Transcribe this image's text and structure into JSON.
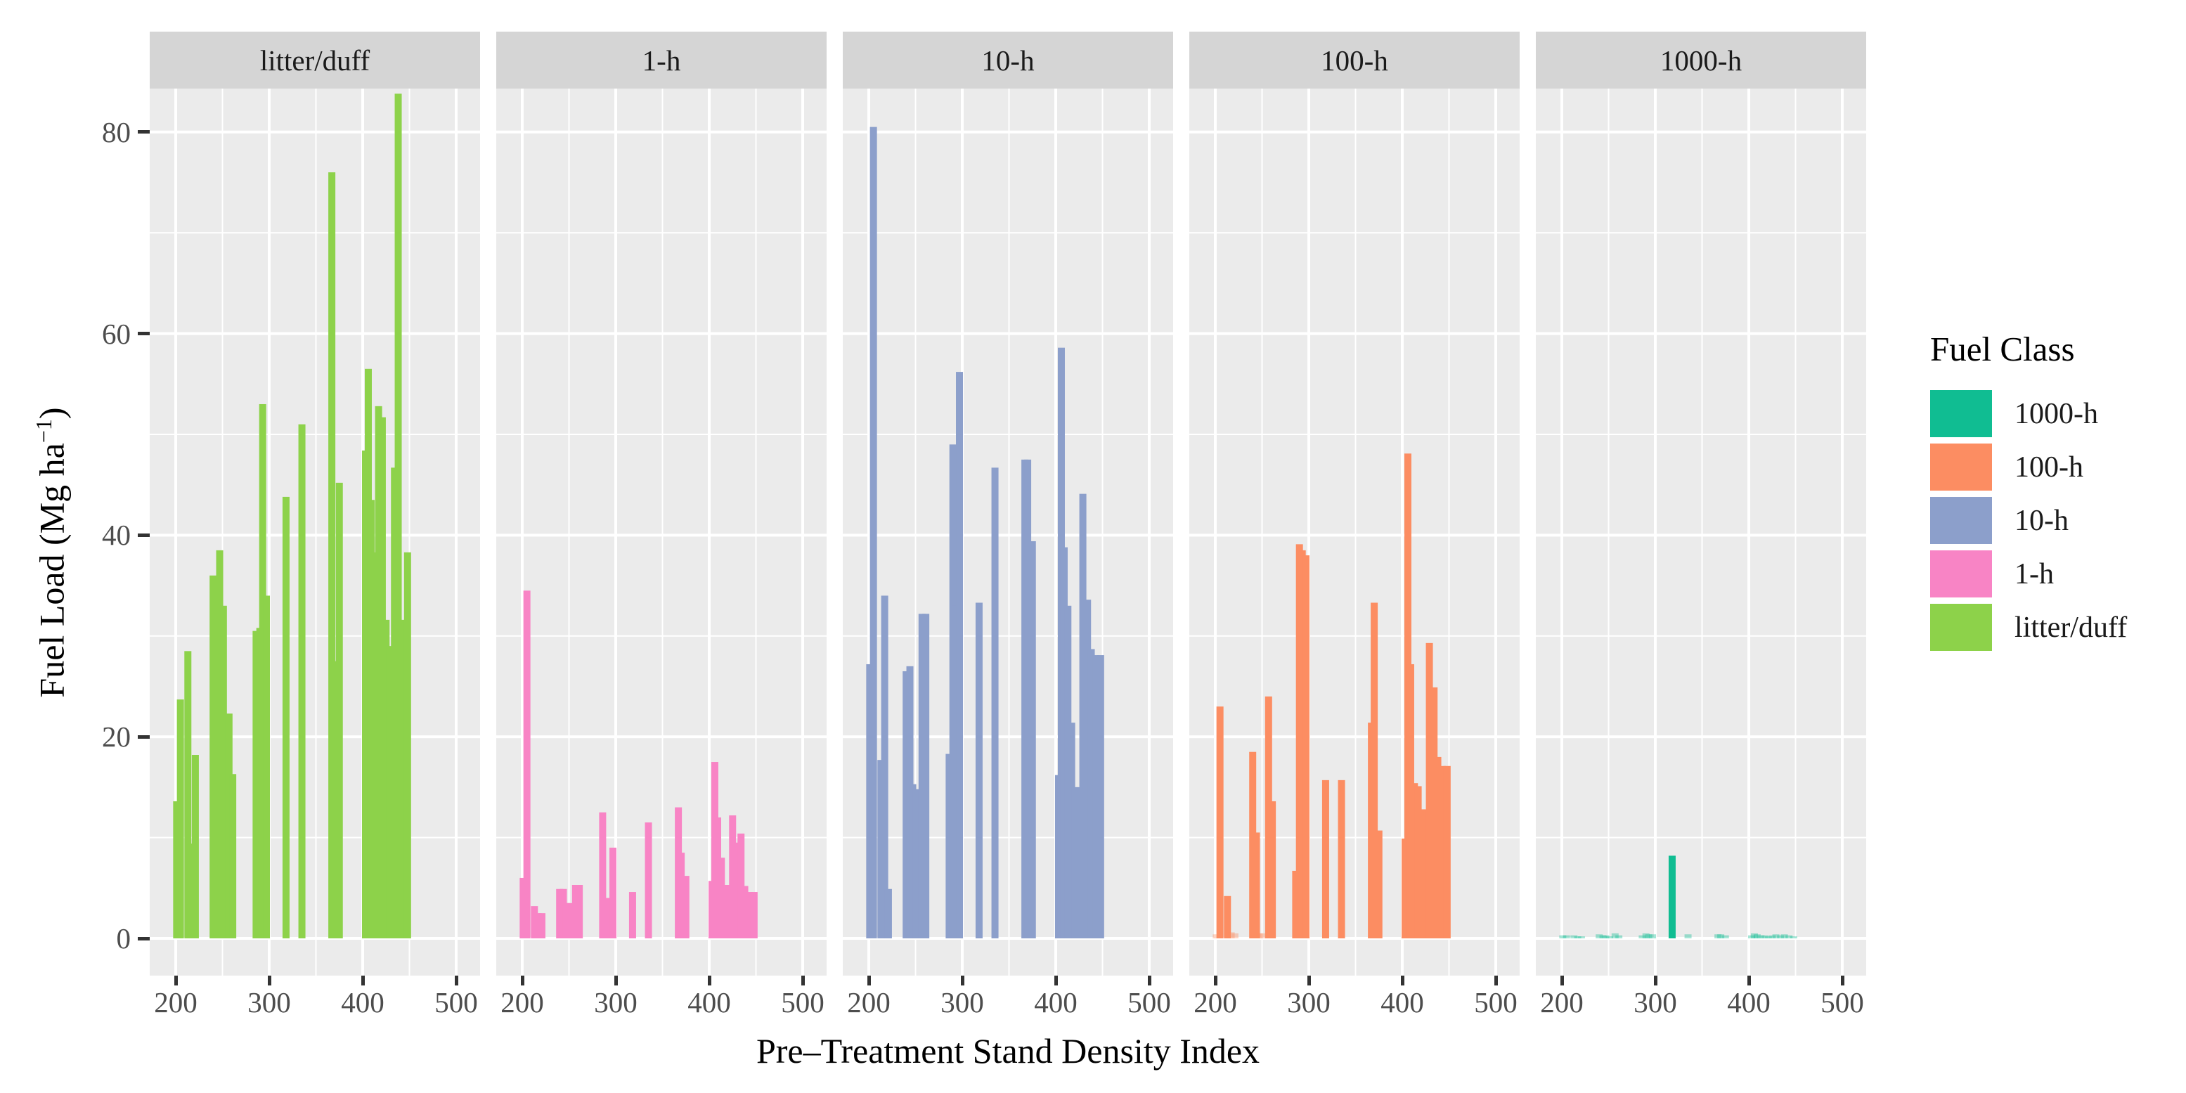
{
  "axes": {
    "y_title_prefix": "Fuel Load (Mg ha",
    "y_title_sup": "−1",
    "y_title_suffix": ")",
    "x_title": "Pre–Treatment Stand Density Index",
    "y_ticks": [
      0,
      20,
      40,
      60,
      80
    ],
    "x_ticks": [
      200,
      300,
      400,
      500
    ]
  },
  "legend": {
    "title": "Fuel Class",
    "items": [
      {
        "label": "1000-h",
        "color": "#10BD92"
      },
      {
        "label": "100-h",
        "color": "#FC8D62"
      },
      {
        "label": "10-h",
        "color": "#8C9FCB"
      },
      {
        "label": "1-h",
        "color": "#F884C5"
      },
      {
        "label": "litter/duff",
        "color": "#8DD24A"
      }
    ]
  },
  "style": {
    "panel_bg": "#EBEBEB",
    "strip_bg": "#D5D5D5",
    "grid_color": "#FFFFFF",
    "tick_color": "#333333",
    "axis_text_color": "#4D4D4D",
    "strip_text_color": "#1A1A1A"
  },
  "chart_data": {
    "type": "bar",
    "title": "",
    "facet_variable": "Fuel Class",
    "facets": [
      "litter/duff",
      "1-h",
      "10-h",
      "100-h",
      "1000-h"
    ],
    "xlabel": "Pre–Treatment Stand Density Index",
    "ylabel": "Fuel Load (Mg ha⁻¹)",
    "x_ticks": [
      200,
      300,
      400,
      500
    ],
    "y_ticks": [
      0,
      20,
      40,
      60,
      80
    ],
    "x_minor_gridlines": [
      250,
      350,
      450
    ],
    "y_minor_gridlines": [
      10,
      30,
      50,
      70
    ],
    "xlim": [
      172,
      525
    ],
    "ylim": [
      -3.7,
      84.3
    ],
    "grid": "white major and minor gridlines on grey panel background",
    "legend_position": "right",
    "x": [
      201,
      205,
      213,
      217,
      221,
      240,
      244,
      247,
      251,
      257,
      261,
      286,
      290,
      293,
      297,
      318,
      335,
      367,
      370,
      375,
      403,
      406,
      409,
      413,
      417,
      421,
      425,
      429,
      434,
      438,
      443,
      448
    ],
    "series": [
      {
        "name": "litter/duff",
        "color": "#8DD24A",
        "values": [
          13.6,
          23.7,
          28.5,
          9.4,
          18.2,
          36.0,
          35.5,
          38.5,
          33.0,
          22.3,
          16.3,
          30.5,
          30.8,
          53.0,
          34.0,
          43.8,
          51.0,
          76.0,
          27.5,
          45.2,
          48.4,
          56.5,
          43.5,
          38.3,
          52.8,
          51.7,
          31.6,
          29.0,
          46.7,
          83.8,
          31.6,
          38.3
        ]
      },
      {
        "name": "1-h",
        "color": "#F884C5",
        "values": [
          6.0,
          34.5,
          3.2,
          2.5,
          2.5,
          4.9,
          4.9,
          3.5,
          3.5,
          5.3,
          5.3,
          12.5,
          4.0,
          4.0,
          9.0,
          4.6,
          11.5,
          13.0,
          8.5,
          6.2,
          5.7,
          17.5,
          12.0,
          8.0,
          5.3,
          5.3,
          12.2,
          9.5,
          10.4,
          5.2,
          4.6,
          4.6
        ]
      },
      {
        "name": "10-h",
        "color": "#8C9FCB",
        "values": [
          27.2,
          80.5,
          17.7,
          34.0,
          4.9,
          26.5,
          27.0,
          15.3,
          14.8,
          32.2,
          32.2,
          18.3,
          49.0,
          33.0,
          56.2,
          33.3,
          46.7,
          47.5,
          47.5,
          39.4,
          16.2,
          58.6,
          38.8,
          33.0,
          21.4,
          15.0,
          15.0,
          44.1,
          33.6,
          28.7,
          28.1,
          28.1
        ]
      },
      {
        "name": "100-h",
        "color": "#FC8D62",
        "values": [
          0.4,
          23.0,
          4.2,
          0.6,
          0.5,
          18.5,
          10.5,
          0.5,
          0.5,
          24.0,
          13.6,
          6.7,
          39.1,
          38.5,
          38.0,
          15.7,
          15.7,
          21.4,
          33.3,
          10.7,
          9.9,
          48.1,
          27.2,
          15.4,
          15.1,
          12.8,
          12.8,
          29.3,
          24.9,
          18.0,
          17.1,
          17.1
        ]
      },
      {
        "name": "1000-h",
        "color": "#10BD92",
        "values": [
          0.3,
          0.3,
          0.3,
          0.2,
          0.2,
          0.4,
          0.3,
          0.3,
          0.2,
          0.5,
          0.3,
          0.3,
          0.5,
          0.4,
          0.4,
          8.2,
          0.4,
          0.4,
          0.4,
          0.3,
          0.3,
          0.5,
          0.4,
          0.3,
          0.3,
          0.2,
          0.3,
          0.4,
          0.3,
          0.4,
          0.3,
          0.2
        ]
      }
    ]
  }
}
